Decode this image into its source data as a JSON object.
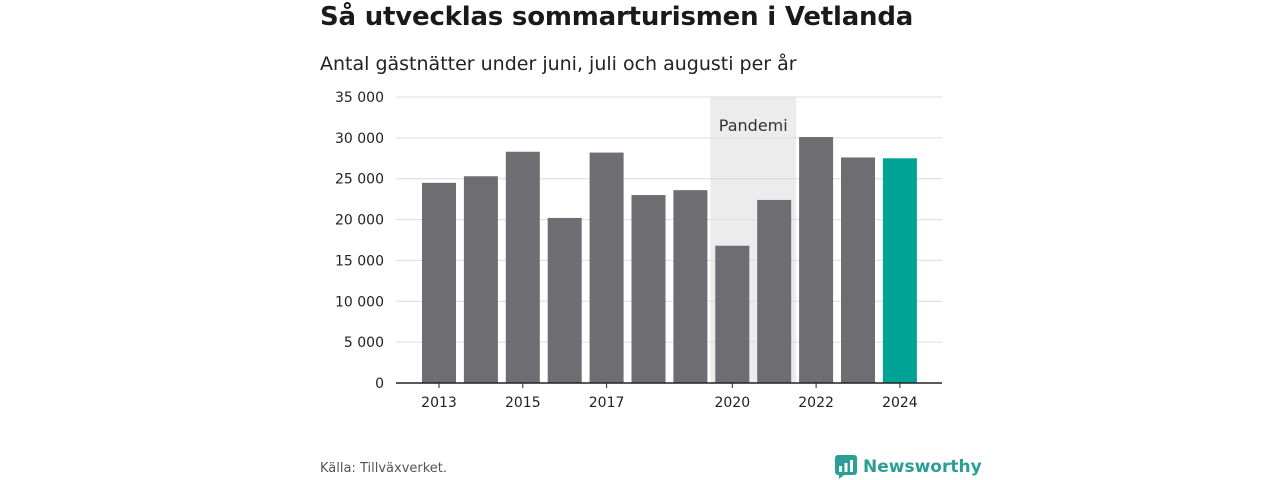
{
  "header": {
    "title": "Så utvecklas sommarturismen i Vetlanda",
    "subtitle": "Antal gästnätter under juni, juli och augusti per år"
  },
  "footer": {
    "source": "Källa: Tillväxverket.",
    "brand": "Newsworthy"
  },
  "colors": {
    "bar": "#6e6d72",
    "highlight": "#00a396",
    "pandemic_band": "#ececec",
    "grid": "#dcdcdc",
    "brand": "#2b9e96"
  },
  "chart_data": {
    "type": "bar",
    "categories": [
      "2013",
      "2014",
      "2015",
      "2016",
      "2017",
      "2018",
      "2019",
      "2020",
      "2021",
      "2022",
      "2023",
      "2024"
    ],
    "values": [
      24500,
      25300,
      28300,
      20200,
      28200,
      23000,
      23600,
      16800,
      22400,
      30100,
      27600,
      27500
    ],
    "highlight_category": "2024",
    "x_tick_labels": [
      "2013",
      "2015",
      "2017",
      "2020",
      "2022",
      "2024"
    ],
    "y_ticks": [
      0,
      5000,
      10000,
      15000,
      20000,
      25000,
      30000,
      35000
    ],
    "y_tick_labels": [
      "0",
      "5 000",
      "10 000",
      "15 000",
      "20 000",
      "25 000",
      "30 000",
      "35 000"
    ],
    "ylim": [
      0,
      35000
    ],
    "grid": true,
    "annotations": [
      {
        "label": "Pandemi",
        "from": "2020",
        "to": "2021"
      }
    ]
  }
}
